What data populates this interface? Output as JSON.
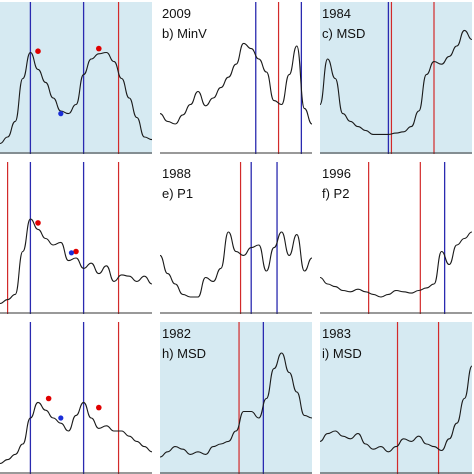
{
  "colors": {
    "shade": "#d6eaf2",
    "curve": "#1a1a1a",
    "blue_line": "#2a2ab0",
    "red_line": "#d22a2a",
    "red_dot": "#e00000",
    "blue_dot": "#1a2ed8",
    "axis": "#333333"
  },
  "chart_data": [
    {
      "type": "line",
      "panel": "a",
      "year": "",
      "label": "",
      "shaded": true,
      "x": [
        0,
        5,
        10,
        15,
        20,
        25,
        30,
        35,
        40,
        45,
        50,
        55,
        60,
        65,
        70,
        75,
        80,
        85,
        90,
        95,
        100
      ],
      "values": [
        5,
        10,
        22,
        55,
        75,
        62,
        52,
        40,
        30,
        28,
        35,
        58,
        70,
        74,
        75,
        68,
        55,
        40,
        25,
        10,
        8
      ],
      "blue_lines": [
        20,
        55
      ],
      "red_lines": [
        78
      ],
      "red_dots": [
        [
          25,
          76
        ],
        [
          65,
          78
        ]
      ],
      "blue_dots": [
        [
          40,
          28
        ]
      ]
    },
    {
      "type": "line",
      "panel": "b",
      "year": "2009",
      "label": "b) MinV",
      "shaded": false,
      "x": [
        0,
        5,
        10,
        15,
        20,
        25,
        30,
        35,
        40,
        45,
        50,
        55,
        60,
        65,
        70,
        75,
        80,
        85,
        90,
        95,
        100
      ],
      "values": [
        28,
        22,
        20,
        27,
        35,
        45,
        34,
        40,
        48,
        56,
        66,
        82,
        78,
        70,
        60,
        38,
        35,
        58,
        80,
        32,
        20
      ],
      "blue_lines": [
        63,
        93
      ],
      "red_lines": [
        78
      ]
    },
    {
      "type": "line",
      "panel": "c",
      "year": "1984",
      "label": "c) MSD",
      "shaded": true,
      "x": [
        0,
        5,
        10,
        15,
        20,
        25,
        30,
        35,
        40,
        45,
        50,
        55,
        60,
        65,
        70,
        75,
        80,
        85,
        90,
        95,
        100
      ],
      "values": [
        35,
        70,
        55,
        28,
        22,
        18,
        15,
        12,
        12,
        12,
        13,
        14,
        18,
        30,
        58,
        68,
        66,
        72,
        80,
        92,
        85
      ],
      "blue_lines": [
        45
      ],
      "red_lines": [
        47,
        75
      ]
    },
    {
      "type": "line",
      "panel": "d",
      "year": "",
      "label": "",
      "shaded": false,
      "x": [
        0,
        5,
        10,
        15,
        20,
        25,
        30,
        35,
        40,
        45,
        50,
        55,
        60,
        65,
        70,
        75,
        80,
        85,
        90,
        95,
        100
      ],
      "values": [
        5,
        8,
        12,
        45,
        70,
        62,
        55,
        50,
        52,
        38,
        40,
        32,
        36,
        28,
        34,
        22,
        27,
        26,
        22,
        26,
        20
      ],
      "blue_lines": [
        20,
        55
      ],
      "red_lines": [
        5,
        78
      ],
      "red_dots": [
        [
          25,
          67
        ],
        [
          50,
          45
        ]
      ],
      "blue_dots": [
        [
          47,
          44
        ]
      ]
    },
    {
      "type": "line",
      "panel": "e",
      "year": "1988",
      "label": "e) P1",
      "shaded": false,
      "x": [
        0,
        5,
        10,
        15,
        20,
        25,
        30,
        35,
        40,
        45,
        50,
        55,
        60,
        65,
        70,
        75,
        80,
        85,
        90,
        95,
        100
      ],
      "values": [
        42,
        28,
        20,
        12,
        10,
        10,
        25,
        22,
        32,
        60,
        45,
        42,
        48,
        50,
        30,
        48,
        60,
        42,
        58,
        30,
        40
      ],
      "blue_lines": [
        60,
        77
      ],
      "red_lines": [
        53
      ]
    },
    {
      "type": "line",
      "panel": "f",
      "year": "1996",
      "label": "f) P2",
      "shaded": false,
      "x": [
        0,
        5,
        10,
        15,
        20,
        25,
        30,
        35,
        40,
        45,
        50,
        55,
        60,
        65,
        70,
        75,
        80,
        85,
        90,
        95,
        100
      ],
      "values": [
        25,
        20,
        18,
        15,
        14,
        16,
        14,
        12,
        10,
        12,
        15,
        14,
        13,
        15,
        17,
        20,
        45,
        35,
        50,
        55,
        60
      ],
      "blue_lines": [
        82
      ],
      "red_lines": [
        32,
        66
      ]
    },
    {
      "type": "line",
      "panel": "g",
      "year": "",
      "label": "",
      "shaded": false,
      "x": [
        0,
        5,
        10,
        15,
        20,
        25,
        30,
        35,
        40,
        45,
        50,
        55,
        60,
        65,
        70,
        75,
        80,
        85,
        90,
        95,
        100
      ],
      "values": [
        5,
        8,
        12,
        20,
        40,
        52,
        46,
        40,
        36,
        30,
        42,
        52,
        40,
        32,
        34,
        30,
        30,
        26,
        22,
        18,
        14
      ],
      "blue_lines": [
        20,
        55
      ],
      "red_lines": [
        78
      ],
      "red_dots": [
        [
          32,
          55
        ],
        [
          65,
          48
        ]
      ],
      "blue_dots": [
        [
          40,
          40
        ]
      ]
    },
    {
      "type": "line",
      "panel": "h",
      "year": "1982",
      "label": "h) MSD",
      "shaded": true,
      "x": [
        0,
        5,
        10,
        15,
        20,
        25,
        30,
        35,
        40,
        45,
        50,
        55,
        60,
        65,
        70,
        75,
        80,
        85,
        90,
        95,
        100
      ],
      "values": [
        10,
        14,
        18,
        16,
        12,
        14,
        12,
        18,
        20,
        22,
        30,
        45,
        45,
        40,
        55,
        78,
        90,
        75,
        60,
        42,
        40
      ],
      "blue_lines": [
        68
      ],
      "red_lines": [
        52
      ]
    },
    {
      "type": "line",
      "panel": "i",
      "year": "1983",
      "label": "i) MSD",
      "shaded": true,
      "x": [
        0,
        5,
        10,
        15,
        20,
        25,
        30,
        35,
        40,
        45,
        50,
        55,
        60,
        65,
        70,
        75,
        80,
        85,
        90,
        95,
        100
      ],
      "values": [
        22,
        28,
        30,
        26,
        24,
        28,
        20,
        16,
        18,
        14,
        18,
        24,
        22,
        26,
        20,
        18,
        15,
        24,
        36,
        55,
        80
      ],
      "blue_lines": [],
      "red_lines": [
        51,
        78
      ]
    }
  ]
}
